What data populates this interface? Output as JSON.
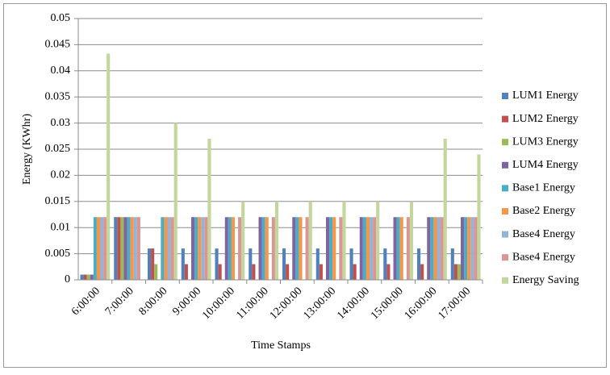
{
  "chart_data": {
    "type": "bar",
    "y_label": "Energy (KWhr)",
    "x_label": "Time Stamps",
    "categories": [
      "6:00:00",
      "7:00:00",
      "8:00:00",
      "9:00:00",
      "10:00:00",
      "11:00:00",
      "12:00:00",
      "13:00:00",
      "14:00:00",
      "15:00:00",
      "16:00:00",
      "17:00:00"
    ],
    "series": [
      {
        "name": "LUM1 Energy",
        "color": "#4f81bd",
        "values": [
          0.001,
          0.012,
          0.006,
          0.006,
          0.006,
          0.006,
          0.006,
          0.006,
          0.006,
          0.006,
          0.006,
          0.006
        ]
      },
      {
        "name": "LUM2 Energy",
        "color": "#c0504d",
        "values": [
          0.001,
          0.012,
          0.006,
          0.003,
          0.003,
          0.003,
          0.003,
          0.003,
          0.003,
          0.003,
          0.003,
          0.003
        ]
      },
      {
        "name": "LUM3 Energy",
        "color": "#9bbb59",
        "values": [
          0.001,
          0.012,
          0.003,
          0,
          0,
          0,
          0,
          0,
          0,
          0,
          0,
          0.003
        ]
      },
      {
        "name": "LUM4 Energy",
        "color": "#8064a2",
        "values": [
          0.001,
          0.012,
          0,
          0.012,
          0.012,
          0.012,
          0.012,
          0.012,
          0.012,
          0.012,
          0.012,
          0.012
        ]
      },
      {
        "name": "Base1  Energy",
        "color": "#4bacc6",
        "values": [
          0.012,
          0.012,
          0.012,
          0.012,
          0.012,
          0.012,
          0.012,
          0.012,
          0.012,
          0.012,
          0.012,
          0.012
        ]
      },
      {
        "name": "Base2  Energy",
        "color": "#f79646",
        "values": [
          0.012,
          0.012,
          0.012,
          0.012,
          0.012,
          0.012,
          0.012,
          0.012,
          0.012,
          0.012,
          0.012,
          0.012
        ]
      },
      {
        "name": "Base4  Energy",
        "color": "#95b3d7",
        "values": [
          0.012,
          0.012,
          0.012,
          0.012,
          0,
          0,
          0,
          0,
          0.012,
          0,
          0.012,
          0.012
        ]
      },
      {
        "name": "Base4  Energy",
        "color": "#da9694",
        "values": [
          0.012,
          0.012,
          0.012,
          0.012,
          0.012,
          0.012,
          0.012,
          0.012,
          0.012,
          0.012,
          0.012,
          0.012
        ]
      },
      {
        "name": "Energy Saving",
        "color": "#c3d69b",
        "values": [
          0.0433,
          0,
          0.03,
          0.027,
          0.015,
          0.015,
          0.015,
          0.015,
          0.015,
          0.015,
          0.027,
          0.024
        ]
      }
    ],
    "ylim": [
      0,
      0.05
    ],
    "yticks": [
      0,
      0.005,
      0.01,
      0.015,
      0.02,
      0.025,
      0.03,
      0.035,
      0.04,
      0.045,
      0.05
    ],
    "grid": true,
    "legend": "right"
  }
}
